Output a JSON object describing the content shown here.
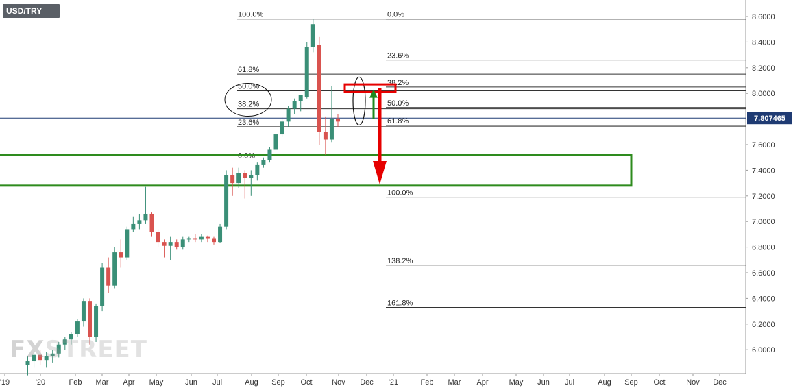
{
  "ticker": "USD/TRY",
  "watermark": {
    "part1": "FX",
    "part2": "STREET"
  },
  "colors": {
    "bullish": "#3a8f77",
    "bearish": "#d9534f",
    "zone": "#2e8b1e",
    "arrow_down": "#e60000",
    "arrow_up": "#1f8a1f",
    "last_price_line": "#1f3b73",
    "last_price_bg": "#1f3b73",
    "axis": "#999999"
  },
  "chart_data": {
    "type": "candlestick",
    "title": "USD/TRY",
    "timeframe": "weekly",
    "ylim": [
      5.82,
      8.66
    ],
    "y_ticks": [
      "8.6000",
      "8.4000",
      "8.2000",
      "8.0000",
      "7.8000",
      "7.6000",
      "7.4000",
      "7.2000",
      "7.0000",
      "6.8000",
      "6.6000",
      "6.4000",
      "6.2000",
      "6.0000"
    ],
    "x_ticks": [
      "'19",
      "'20",
      "Feb",
      "Mar",
      "Apr",
      "May",
      "Jun",
      "Jul",
      "Aug",
      "Sep",
      "Oct",
      "Nov",
      "Dec",
      "'21",
      "Feb",
      "Mar",
      "Apr",
      "May",
      "Jun",
      "Jul",
      "Aug",
      "Sep",
      "Oct",
      "Nov",
      "Dec"
    ],
    "last_price": "7.807465",
    "last_price_value": 7.807465,
    "candles": [
      {
        "o": 5.88,
        "h": 5.95,
        "l": 5.8,
        "c": 5.91
      },
      {
        "o": 5.91,
        "h": 5.99,
        "l": 5.86,
        "c": 5.96
      },
      {
        "o": 5.96,
        "h": 6.0,
        "l": 5.88,
        "c": 5.92
      },
      {
        "o": 5.92,
        "h": 5.98,
        "l": 5.86,
        "c": 5.95
      },
      {
        "o": 5.95,
        "h": 6.0,
        "l": 5.9,
        "c": 5.97
      },
      {
        "o": 5.97,
        "h": 6.06,
        "l": 5.94,
        "c": 6.04
      },
      {
        "o": 6.04,
        "h": 6.1,
        "l": 6.0,
        "c": 6.08
      },
      {
        "o": 6.08,
        "h": 6.14,
        "l": 6.04,
        "c": 6.12
      },
      {
        "o": 6.12,
        "h": 6.24,
        "l": 6.1,
        "c": 6.22
      },
      {
        "o": 6.22,
        "h": 6.4,
        "l": 6.18,
        "c": 6.38
      },
      {
        "o": 6.38,
        "h": 6.4,
        "l": 6.04,
        "c": 6.1
      },
      {
        "o": 6.1,
        "h": 6.36,
        "l": 6.06,
        "c": 6.34
      },
      {
        "o": 6.34,
        "h": 6.68,
        "l": 6.3,
        "c": 6.64
      },
      {
        "o": 6.64,
        "h": 6.72,
        "l": 6.44,
        "c": 6.5
      },
      {
        "o": 6.5,
        "h": 6.8,
        "l": 6.48,
        "c": 6.76
      },
      {
        "o": 6.76,
        "h": 6.86,
        "l": 6.64,
        "c": 6.72
      },
      {
        "o": 6.72,
        "h": 6.96,
        "l": 6.7,
        "c": 6.94
      },
      {
        "o": 6.94,
        "h": 7.04,
        "l": 6.92,
        "c": 6.98
      },
      {
        "o": 6.98,
        "h": 7.06,
        "l": 6.94,
        "c": 7.01
      },
      {
        "o": 7.01,
        "h": 7.27,
        "l": 6.98,
        "c": 7.06
      },
      {
        "o": 7.06,
        "h": 7.07,
        "l": 6.88,
        "c": 6.92
      },
      {
        "o": 6.92,
        "h": 6.94,
        "l": 6.8,
        "c": 6.84
      },
      {
        "o": 6.84,
        "h": 6.86,
        "l": 6.72,
        "c": 6.81
      },
      {
        "o": 6.81,
        "h": 6.88,
        "l": 6.7,
        "c": 6.84
      },
      {
        "o": 6.84,
        "h": 6.86,
        "l": 6.78,
        "c": 6.8
      },
      {
        "o": 6.8,
        "h": 6.88,
        "l": 6.78,
        "c": 6.86
      },
      {
        "o": 6.86,
        "h": 6.88,
        "l": 6.84,
        "c": 6.87
      },
      {
        "o": 6.87,
        "h": 6.9,
        "l": 6.84,
        "c": 6.86
      },
      {
        "o": 6.86,
        "h": 6.9,
        "l": 6.84,
        "c": 6.88
      },
      {
        "o": 6.88,
        "h": 6.89,
        "l": 6.84,
        "c": 6.87
      },
      {
        "o": 6.87,
        "h": 6.88,
        "l": 6.82,
        "c": 6.84
      },
      {
        "o": 6.84,
        "h": 6.98,
        "l": 6.83,
        "c": 6.96
      },
      {
        "o": 6.96,
        "h": 7.4,
        "l": 6.94,
        "c": 7.36
      },
      {
        "o": 7.36,
        "h": 7.42,
        "l": 7.2,
        "c": 7.3
      },
      {
        "o": 7.3,
        "h": 7.42,
        "l": 7.26,
        "c": 7.38
      },
      {
        "o": 7.38,
        "h": 7.4,
        "l": 7.18,
        "c": 7.34
      },
      {
        "o": 7.34,
        "h": 7.4,
        "l": 7.2,
        "c": 7.36
      },
      {
        "o": 7.36,
        "h": 7.46,
        "l": 7.32,
        "c": 7.44
      },
      {
        "o": 7.44,
        "h": 7.5,
        "l": 7.42,
        "c": 7.48
      },
      {
        "o": 7.48,
        "h": 7.58,
        "l": 7.46,
        "c": 7.56
      },
      {
        "o": 7.56,
        "h": 7.7,
        "l": 7.54,
        "c": 7.68
      },
      {
        "o": 7.68,
        "h": 7.82,
        "l": 7.66,
        "c": 7.78
      },
      {
        "o": 7.78,
        "h": 7.9,
        "l": 7.74,
        "c": 7.88
      },
      {
        "o": 7.88,
        "h": 7.96,
        "l": 7.84,
        "c": 7.94
      },
      {
        "o": 7.94,
        "h": 7.98,
        "l": 7.86,
        "c": 7.99
      },
      {
        "o": 7.97,
        "h": 8.4,
        "l": 7.96,
        "c": 8.36
      },
      {
        "o": 8.36,
        "h": 8.58,
        "l": 8.32,
        "c": 8.54
      },
      {
        "o": 8.38,
        "h": 8.44,
        "l": 7.6,
        "c": 7.7
      },
      {
        "o": 7.7,
        "h": 7.82,
        "l": 7.52,
        "c": 7.64
      },
      {
        "o": 7.64,
        "h": 8.06,
        "l": 7.62,
        "c": 7.8
      },
      {
        "o": 7.8,
        "h": 7.84,
        "l": 7.74,
        "c": 7.78
      }
    ],
    "fibonacci_left": [
      {
        "label": "100.0%",
        "value": 8.58
      },
      {
        "label": "61.8%",
        "value": 8.15
      },
      {
        "label": "50.0%",
        "value": 8.02
      },
      {
        "label": "38.2%",
        "value": 7.88
      },
      {
        "label": "23.6%",
        "value": 7.74
      },
      {
        "label": "0.0%",
        "value": 7.48
      }
    ],
    "fibonacci_right": [
      {
        "label": "0.0%",
        "value": 8.58
      },
      {
        "label": "23.6%",
        "value": 8.26
      },
      {
        "label": "38.2%",
        "value": 8.05
      },
      {
        "label": "50.0%",
        "value": 7.89
      },
      {
        "label": "61.8%",
        "value": 7.75
      },
      {
        "label": "100.0%",
        "value": 7.19
      },
      {
        "label": "138.2%",
        "value": 6.66
      },
      {
        "label": "161.8%",
        "value": 6.33
      }
    ],
    "support_zone": [
      7.28,
      7.52
    ],
    "resistance_box": [
      8.01,
      8.07
    ],
    "arrow_down": {
      "from": 8.04,
      "to": 7.29
    },
    "arrow_up": {
      "from": 7.8,
      "to": 8.03
    }
  }
}
